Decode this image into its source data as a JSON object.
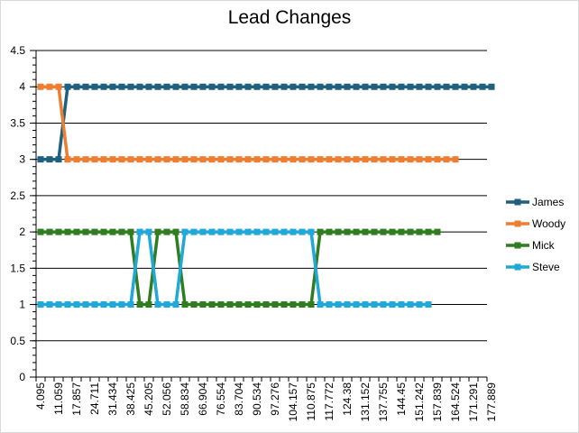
{
  "chart_data": {
    "type": "line",
    "title": "Lead Changes",
    "xlabel": "",
    "ylabel": "",
    "ylim": [
      0,
      4.5
    ],
    "yticks": [
      "0",
      "0.5",
      "1",
      "1.5",
      "2",
      "2.5",
      "3",
      "3.5",
      "4",
      "4.5"
    ],
    "grid": "horizontal",
    "legend": "right",
    "x_tick_labels": [
      "4.095",
      "11.059",
      "17.857",
      "24.711",
      "31.434",
      "38.425",
      "45.205",
      "52.056",
      "58.834",
      "66.904",
      "76.554",
      "83.704",
      "90.534",
      "97.276",
      "104.157",
      "110.875",
      "117.772",
      "124.38",
      "131.152",
      "137.755",
      "144.45",
      "151.242",
      "157.839",
      "164.524",
      "171.291",
      "177.889"
    ],
    "series": [
      {
        "name": "James",
        "color": "#1f5f7f",
        "values": [
          3,
          3,
          3,
          4,
          4,
          4,
          4,
          4,
          4,
          4,
          4,
          4,
          4,
          4,
          4,
          4,
          4,
          4,
          4,
          4,
          4,
          4,
          4,
          4,
          4,
          4,
          4,
          4,
          4,
          4,
          4,
          4,
          4,
          4,
          4,
          4,
          4,
          4,
          4,
          4,
          4,
          4,
          4,
          4,
          4,
          4,
          4,
          4,
          4,
          4,
          4
        ]
      },
      {
        "name": "Woody",
        "color": "#ed7d31",
        "values": [
          4,
          4,
          4,
          3,
          3,
          3,
          3,
          3,
          3,
          3,
          3,
          3,
          3,
          3,
          3,
          3,
          3,
          3,
          3,
          3,
          3,
          3,
          3,
          3,
          3,
          3,
          3,
          3,
          3,
          3,
          3,
          3,
          3,
          3,
          3,
          3,
          3,
          3,
          3,
          3,
          3,
          3,
          3,
          3,
          3,
          3,
          3
        ]
      },
      {
        "name": "Mick",
        "color": "#2e7d1e",
        "values": [
          2,
          2,
          2,
          2,
          2,
          2,
          2,
          2,
          2,
          2,
          2,
          1,
          1,
          2,
          2,
          2,
          1,
          1,
          1,
          1,
          1,
          1,
          1,
          1,
          1,
          1,
          1,
          1,
          1,
          1,
          1,
          2,
          2,
          2,
          2,
          2,
          2,
          2,
          2,
          2,
          2,
          2,
          2,
          2,
          2
        ]
      },
      {
        "name": "Steve",
        "color": "#1fa8d9",
        "values": [
          1,
          1,
          1,
          1,
          1,
          1,
          1,
          1,
          1,
          1,
          1,
          2,
          2,
          1,
          1,
          1,
          2,
          2,
          2,
          2,
          2,
          2,
          2,
          2,
          2,
          2,
          2,
          2,
          2,
          2,
          2,
          1,
          1,
          1,
          1,
          1,
          1,
          1,
          1,
          1,
          1,
          1,
          1,
          1
        ]
      }
    ]
  }
}
